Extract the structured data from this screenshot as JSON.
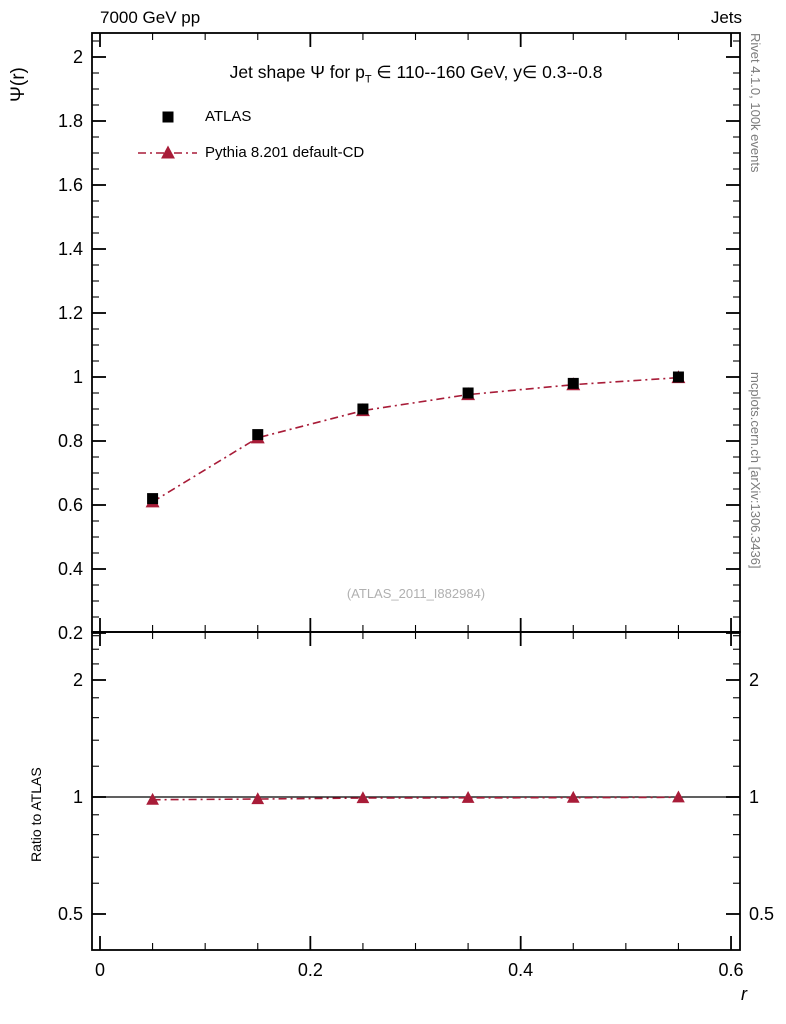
{
  "header": {
    "left": "7000 GeV pp",
    "right": "Jets"
  },
  "title": {
    "pre": "Jet shape Ψ for p",
    "sub": "T",
    "post": " ∈ 110--160 GeV, y∈ 0.3--0.8"
  },
  "legend": [
    {
      "label": "ATLAS",
      "marker": "square",
      "color": "#000000",
      "linestyle": "none"
    },
    {
      "label": "Pythia 8.201 default-CD",
      "marker": "triangle",
      "color": "#a81c38",
      "linestyle": "dashdot"
    }
  ],
  "watermark": "(ATLAS_2011_I882984)",
  "side_labels": {
    "top_right": "Rivet 4.1.0, 100k events",
    "bottom_right": "mcplots.cern.ch [arXiv:1306.3436]"
  },
  "axes_labels": {
    "main_ylabel": "Ψ(r)",
    "ratio_ylabel": "Ratio to ATLAS",
    "xlabel": "r"
  },
  "chart_data": {
    "type": "scatter",
    "title": "Jet shape Ψ for pT ∈ 110--160 GeV, y ∈ 0.3--0.8",
    "xlabel": "r",
    "ylabel": "Ψ(r)",
    "x": [
      0.05,
      0.15,
      0.25,
      0.35,
      0.45,
      0.55
    ],
    "series": [
      {
        "name": "ATLAS",
        "marker": "square",
        "color": "#000000",
        "line": false,
        "values": [
          0.62,
          0.82,
          0.9,
          0.95,
          0.98,
          1.0
        ]
      },
      {
        "name": "Pythia 8.201 default-CD",
        "marker": "triangle",
        "color": "#a81c38",
        "line": true,
        "linestyle": "dashdot",
        "values": [
          0.61,
          0.81,
          0.895,
          0.945,
          0.976,
          0.998
        ]
      }
    ],
    "ratio_panel": {
      "ylabel": "Ratio to ATLAS",
      "reference": 1,
      "series_name": "Pythia 8.201 default-CD / ATLAS",
      "values": [
        0.984,
        0.988,
        0.994,
        0.995,
        0.996,
        0.998
      ]
    },
    "axes": {
      "x": {
        "range": [
          0,
          0.6
        ],
        "majors": [
          0,
          0.2,
          0.4,
          0.6
        ],
        "labels": [
          "0",
          "0.2",
          "0.4",
          "0.6"
        ],
        "minor_step": 0.05
      },
      "y_main": {
        "range": [
          0.2,
          2.08
        ],
        "majors": [
          0.2,
          0.4,
          0.6,
          0.8,
          1,
          1.2,
          1.4,
          1.6,
          1.8,
          2
        ],
        "labels": [
          "0.2",
          "0.4",
          "0.6",
          "0.8",
          "1",
          "1.2",
          "1.4",
          "1.6",
          "1.8",
          "2"
        ],
        "minor_step": 0.05
      },
      "y_ratio": {
        "range": [
          0.41,
          2.64
        ],
        "scale": "log",
        "majors": [
          0.5,
          1,
          2
        ],
        "labels": [
          "0.5",
          "1",
          "2"
        ],
        "minors": [
          0.6,
          0.7,
          0.8,
          0.9,
          1.2,
          1.4,
          1.6,
          1.8,
          2.2,
          2.4,
          2.6
        ]
      }
    },
    "grid": false,
    "legend_position": "top-left"
  }
}
